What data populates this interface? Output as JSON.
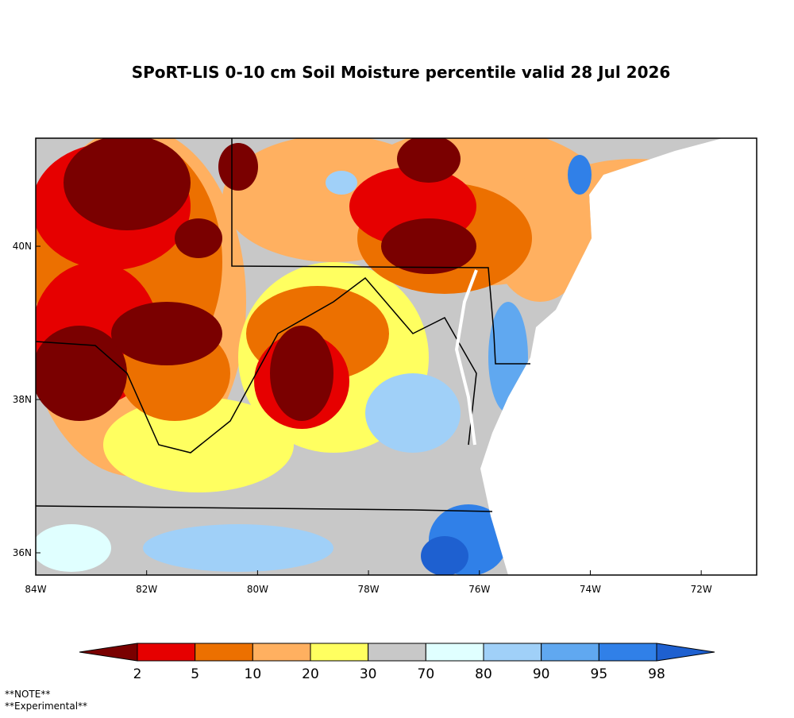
{
  "title": "SPoRT-LIS 0-10 cm Soil Moisture percentile valid 28 Jul 2026",
  "map": {
    "xlim": [
      -84,
      -71
    ],
    "ylim": [
      35.71,
      41.41
    ],
    "xticks": [
      {
        "value": -84,
        "label": "84W"
      },
      {
        "value": -82,
        "label": "82W"
      },
      {
        "value": -80,
        "label": "80W"
      },
      {
        "value": -78,
        "label": "78W"
      },
      {
        "value": -76,
        "label": "76W"
      },
      {
        "value": -74,
        "label": "74W"
      },
      {
        "value": -72,
        "label": "72W"
      }
    ],
    "yticks": [
      {
        "value": 36,
        "label": "36N"
      },
      {
        "value": 38,
        "label": "38N"
      },
      {
        "value": 40,
        "label": "40N"
      }
    ]
  },
  "colorbar": {
    "colors": [
      "#7a0000",
      "#e60000",
      "#ec7000",
      "#ffb060",
      "#ffff60",
      "#c8c8c8",
      "#e0ffff",
      "#a0d0f8",
      "#60a8f0",
      "#3080e8",
      "#1e60d0"
    ],
    "labels": [
      2,
      5,
      10,
      20,
      30,
      70,
      80,
      90,
      95,
      98
    ]
  },
  "notes": [
    "**NOTE**",
    "**Experimental**"
  ]
}
